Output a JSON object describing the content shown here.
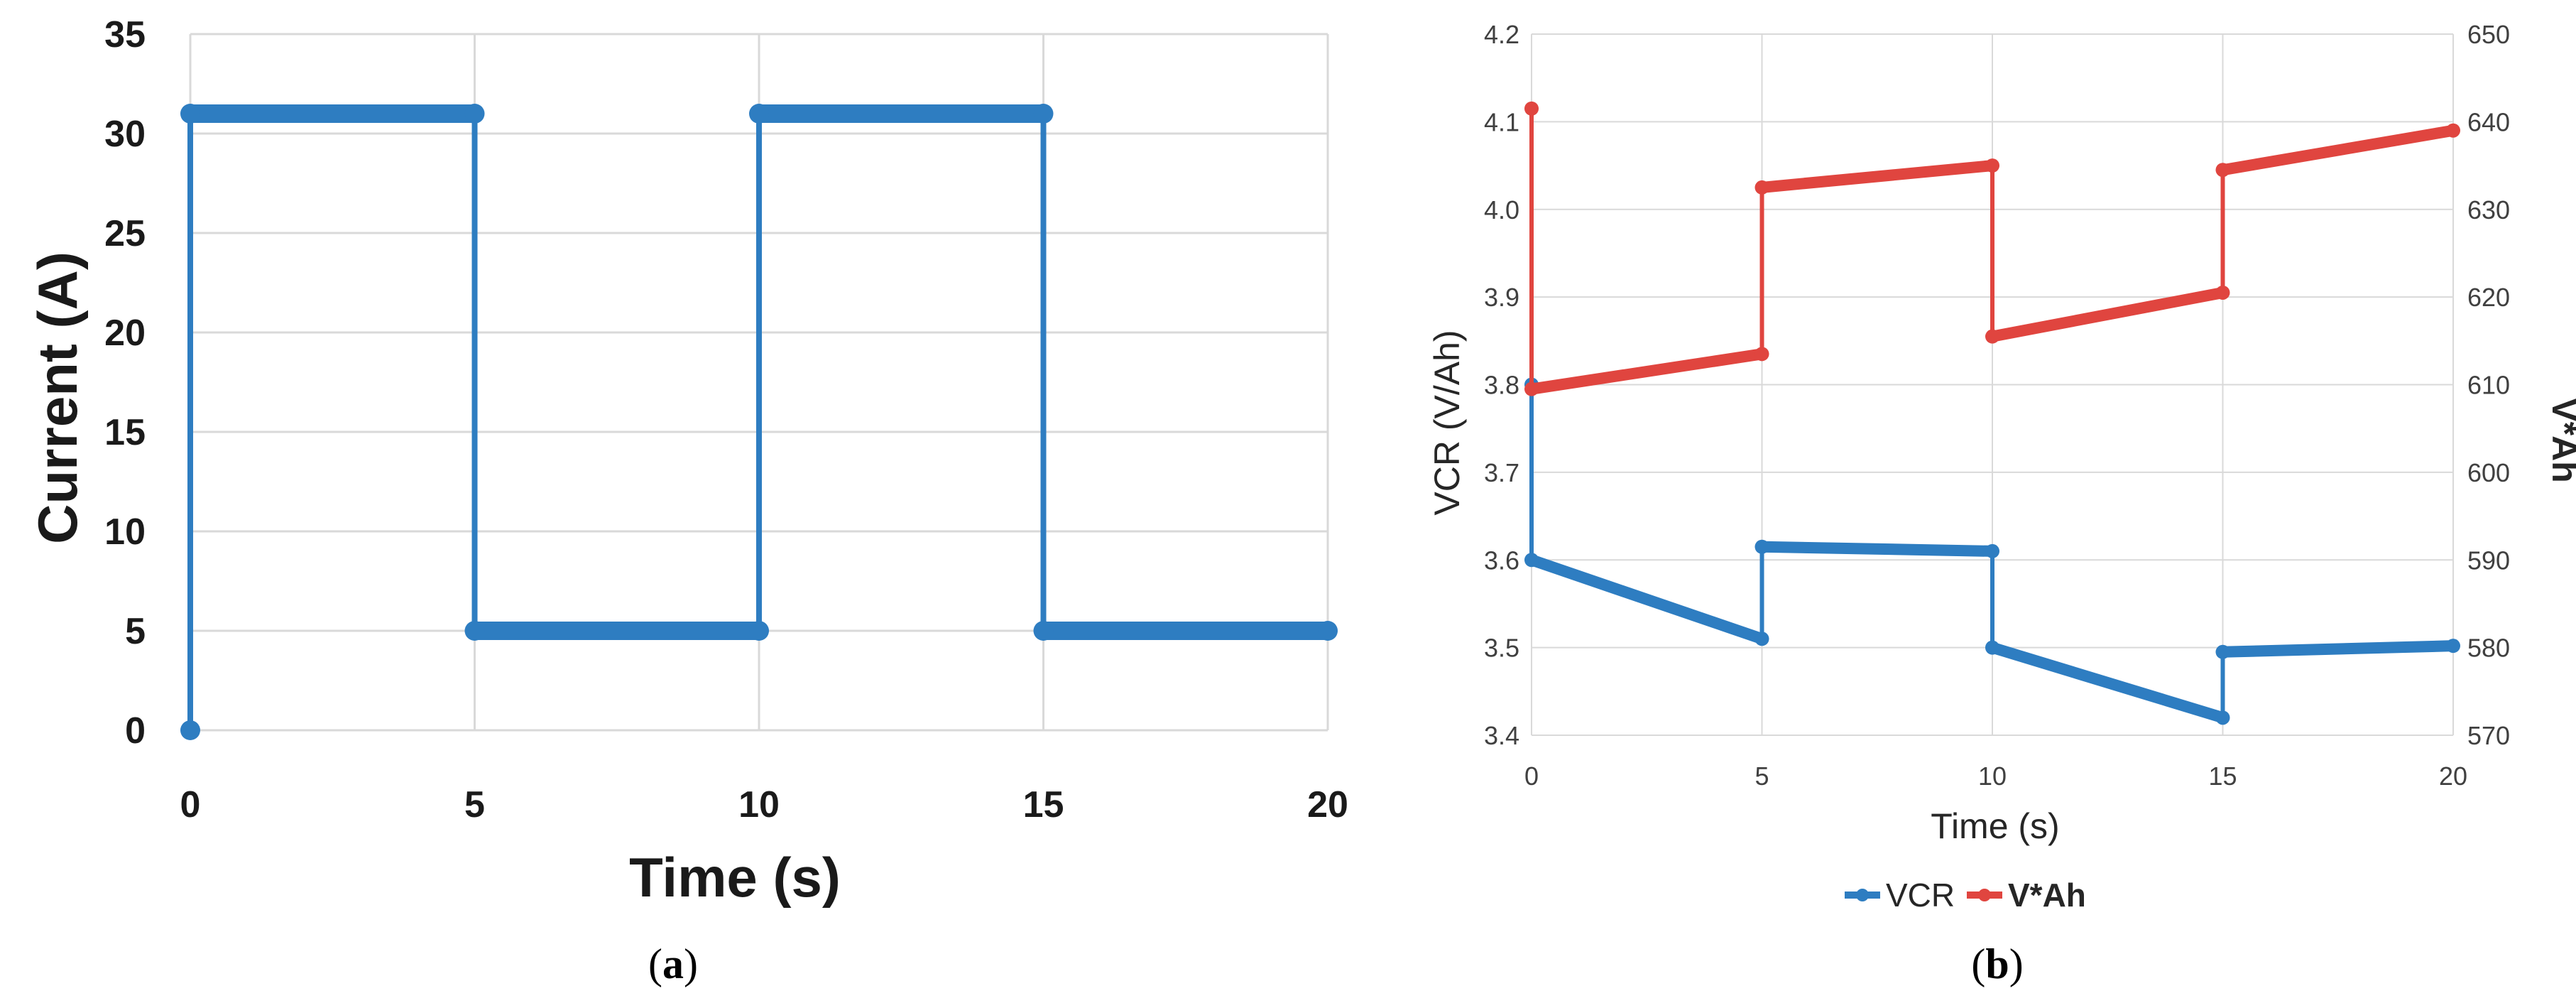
{
  "chart_data": [
    {
      "type": "line",
      "xlabel": "Time (s)",
      "ylabel": "Current (A)",
      "xlim": [
        0,
        20
      ],
      "ylim": [
        0,
        35
      ],
      "xticks": [
        "0",
        "5",
        "10",
        "15",
        "20"
      ],
      "yticks": [
        "0",
        "5",
        "10",
        "15",
        "20",
        "25",
        "30",
        "35"
      ],
      "grid": true,
      "caption": "(a)",
      "colors": {
        "series": "#2e7dc1"
      },
      "series": [
        {
          "x": [
            0,
            0,
            5,
            5,
            10,
            10,
            15,
            15,
            20
          ],
          "values": [
            0,
            31,
            31,
            5,
            5,
            31,
            31,
            5,
            5
          ]
        }
      ]
    },
    {
      "type": "line",
      "xlabel": "Time (s)",
      "ylabel": "VCR (V/Ah)",
      "y2label": "V*Ah",
      "xlim": [
        0,
        20
      ],
      "ylim": [
        3.4,
        4.2
      ],
      "y2lim": [
        570,
        650
      ],
      "xticks": [
        "0",
        "5",
        "10",
        "15",
        "20"
      ],
      "yticks": [
        "3.4",
        "3.5",
        "3.6",
        "3.7",
        "3.8",
        "3.9",
        "4.0",
        "4.1",
        "4.2"
      ],
      "y2ticks": [
        "570",
        "580",
        "590",
        "600",
        "610",
        "620",
        "630",
        "640",
        "650"
      ],
      "grid": true,
      "legend_position": "bottom",
      "caption": "(b)",
      "colors": {
        "VCR": "#2e7dc1",
        "V*Ah": "#e0453f"
      },
      "series": [
        {
          "name": "VCR",
          "axis": "left",
          "x": [
            0,
            0,
            5,
            5,
            10,
            10,
            15,
            15,
            20
          ],
          "values": [
            3.8,
            3.6,
            3.51,
            3.615,
            3.61,
            3.5,
            3.42,
            3.495,
            3.502
          ]
        },
        {
          "name": "V*Ah",
          "axis": "right",
          "x": [
            0,
            0,
            5,
            5,
            10,
            10,
            15,
            15,
            20
          ],
          "values": [
            641.5,
            609.5,
            613.5,
            632.5,
            635,
            615.5,
            620.5,
            634.5,
            639
          ]
        }
      ]
    }
  ]
}
